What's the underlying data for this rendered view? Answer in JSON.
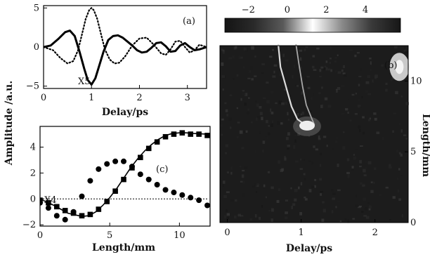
{
  "chart_data": [
    {
      "panel": "(a)",
      "type": "line",
      "xlabel": "Delay/ps",
      "ylabel": "Amplitude /a.u.",
      "xlim": [
        0,
        3.4
      ],
      "ylim": [
        -5.3,
        5.3
      ],
      "x_ticks": [
        0,
        1,
        2,
        3
      ],
      "y_ticks": [
        -5,
        0,
        5
      ],
      "annotation": "X5",
      "series": [
        {
          "style": "solid",
          "x": [
            0,
            0.15,
            0.3,
            0.45,
            0.55,
            0.65,
            0.75,
            0.85,
            0.92,
            1.0,
            1.08,
            1.15,
            1.25,
            1.35,
            1.45,
            1.55,
            1.65,
            1.75,
            1.85,
            1.95,
            2.05,
            2.15,
            2.25,
            2.35,
            2.45,
            2.55,
            2.65,
            2.75,
            2.85,
            2.95,
            3.05,
            3.15,
            3.25,
            3.4
          ],
          "y": [
            0,
            0.2,
            1.0,
            1.9,
            2.1,
            1.4,
            -0.6,
            -2.8,
            -4.2,
            -4.8,
            -4.0,
            -2.6,
            -0.6,
            0.9,
            1.4,
            1.5,
            1.2,
            0.7,
            0.2,
            -0.4,
            -0.7,
            -0.6,
            -0.1,
            0.5,
            0.6,
            0.1,
            -0.6,
            -0.5,
            0.2,
            0.5,
            0.0,
            -0.4,
            -0.3,
            0.0
          ]
        },
        {
          "style": "dotted",
          "x": [
            0,
            0.2,
            0.35,
            0.5,
            0.62,
            0.72,
            0.8,
            0.88,
            0.95,
            1.0,
            1.05,
            1.12,
            1.2,
            1.28,
            1.38,
            1.48,
            1.58,
            1.7,
            1.85,
            2.0,
            2.15,
            2.3,
            2.45,
            2.55,
            2.65,
            2.75,
            2.85,
            2.95,
            3.05,
            3.15,
            3.25,
            3.4
          ],
          "y": [
            0,
            -0.4,
            -1.4,
            -2.1,
            -1.8,
            -0.4,
            1.6,
            3.6,
            4.7,
            5.0,
            4.7,
            3.6,
            1.6,
            -0.3,
            -1.6,
            -2.1,
            -2.0,
            -1.2,
            0.2,
            1.1,
            1.2,
            0.3,
            -0.8,
            -1.0,
            -0.3,
            0.7,
            0.8,
            0.0,
            -0.7,
            -0.4,
            0.3,
            0.0
          ]
        }
      ]
    },
    {
      "panel": "(b)",
      "type": "heatmap",
      "xlabel": "Delay/ps",
      "ylabel": "Length/mm",
      "x_ticks": [
        0,
        1,
        2
      ],
      "y_ticks": [
        0,
        5,
        10
      ],
      "xlim": [
        -0.1,
        2.45
      ],
      "ylim": [
        0,
        12.5
      ],
      "colorbar_ticks": [
        -2,
        0,
        2,
        4
      ],
      "colorbar_range": [
        -3.2,
        5.8
      ],
      "colormap": [
        "#141414",
        "#2a2a2a",
        "#5a5a5a",
        "#ffffff",
        "#8a8a8a",
        "#3a3a3a",
        "#161616"
      ]
    },
    {
      "panel": "(c)",
      "type": "scatter",
      "xlabel": "Length/mm",
      "xlim": [
        0,
        12.2
      ],
      "ylim": [
        -2.1,
        5.6
      ],
      "x_ticks": [
        0,
        5,
        10
      ],
      "y_ticks": [
        -2,
        0,
        2,
        4
      ],
      "annotation": "X4",
      "series": [
        {
          "style": "squares",
          "x": [
            0,
            0.6,
            1.2,
            1.8,
            2.4,
            3.0,
            3.6,
            4.2,
            4.8,
            5.4,
            6.0,
            6.6,
            7.2,
            7.8,
            8.4,
            9.0,
            9.6,
            10.2,
            10.8,
            11.4,
            12.0
          ],
          "y": [
            -0.1,
            -0.3,
            -0.6,
            -0.9,
            -1.1,
            -1.3,
            -1.2,
            -0.8,
            -0.2,
            0.6,
            1.5,
            2.4,
            3.2,
            3.9,
            4.4,
            4.8,
            5.0,
            5.1,
            5.0,
            5.0,
            4.9
          ]
        },
        {
          "style": "circles",
          "x": [
            0,
            0.6,
            1.2,
            1.8,
            2.4,
            3.0,
            3.6,
            4.2,
            4.8,
            5.4,
            6.0,
            6.6,
            7.2,
            7.8,
            8.4,
            9.0,
            9.6,
            10.2,
            10.8,
            11.4,
            12.0
          ],
          "y": [
            -0.3,
            -0.7,
            -1.3,
            -1.6,
            -1.0,
            0.2,
            1.4,
            2.3,
            2.7,
            2.9,
            2.9,
            2.5,
            1.9,
            1.5,
            1.1,
            0.7,
            0.5,
            0.3,
            0.1,
            -0.1,
            -0.5
          ]
        },
        {
          "style": "solid",
          "x": [
            0,
            1,
            2,
            3,
            3.5,
            4,
            4.5,
            5,
            5.5,
            6,
            6.5,
            7,
            7.5,
            8,
            8.5,
            9,
            9.5,
            10,
            10.5,
            11,
            12
          ],
          "y": [
            0,
            -0.5,
            -1.1,
            -1.35,
            -1.3,
            -1.0,
            -0.5,
            0.1,
            0.8,
            1.6,
            2.4,
            3.1,
            3.7,
            4.2,
            4.6,
            4.9,
            5.05,
            5.1,
            5.1,
            5.05,
            5.0
          ]
        },
        {
          "style": "dotted",
          "x": [
            0,
            12
          ],
          "y": [
            0,
            0
          ]
        }
      ]
    }
  ]
}
